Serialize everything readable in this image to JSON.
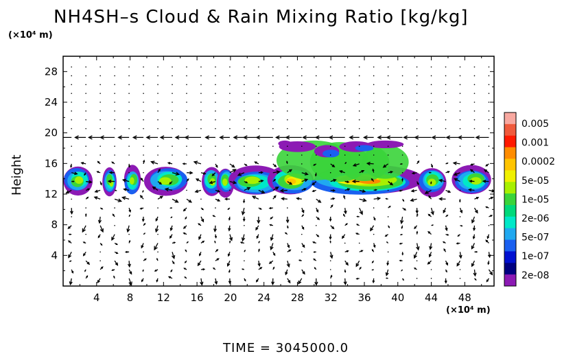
{
  "chart_data": {
    "type": "heatmap",
    "title": "NH4SH–s Cloud & Rain Mixing Ratio [kg/kg]",
    "ylabel": "Height",
    "x_unit": "(×10⁴ m)",
    "y_unit": "(×10⁴ m)",
    "time_label": "TIME  =  3045000.0",
    "xlim": [
      0,
      51.5
    ],
    "ylim": [
      0,
      30
    ],
    "x_ticks": [
      4,
      8,
      12,
      16,
      20,
      24,
      28,
      32,
      36,
      40,
      44,
      48
    ],
    "y_ticks": [
      4,
      8,
      12,
      16,
      20,
      24,
      28
    ],
    "colorbar": {
      "labels": [
        "0.005",
        "0.001",
        "0.0002",
        "5e-05",
        "1e-05",
        "2e-06",
        "5e-07",
        "1e-07",
        "2e-08"
      ],
      "colors": [
        "#f8a8a0",
        "#f05a3c",
        "#ff1a00",
        "#ff8c00",
        "#ffc400",
        "#f0f000",
        "#a8f000",
        "#3ad43a",
        "#00d97a",
        "#00e8c8",
        "#20a8f0",
        "#1a60f0",
        "#0010d0",
        "#000080",
        "#8c1ab4"
      ]
    },
    "cloud_layers": [
      {
        "name": "main_deck",
        "y_range": [
          12.2,
          16.2
        ]
      },
      {
        "name": "upper_patch",
        "x_range": [
          26,
          43
        ],
        "y_range": [
          16.8,
          19
        ]
      }
    ],
    "wind_field": {
      "description_level": "vector arrows",
      "strong_jet_y": 19.2
    }
  }
}
